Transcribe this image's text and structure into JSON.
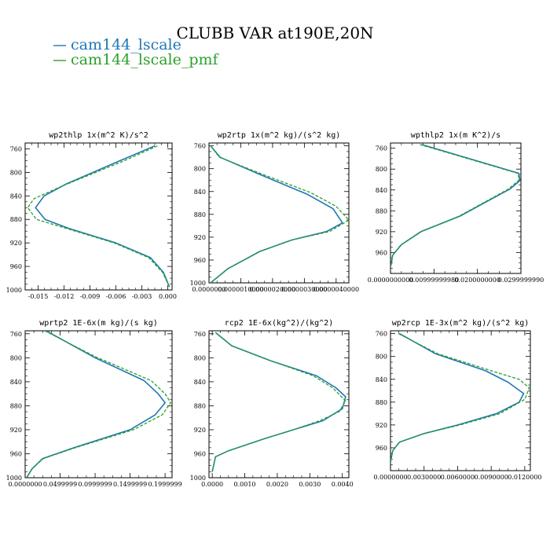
{
  "figure": {
    "title": "CLUBB VAR at190E,20N",
    "legend": [
      {
        "label": "cam144_lscale",
        "color": "#1f77b4",
        "dash": "solid"
      },
      {
        "label": "cam144_lscale_pmf",
        "color": "#2ca02c",
        "dash": "dashed"
      }
    ]
  },
  "chart_data": [
    {
      "type": "line",
      "title": "wp2thlp  1x(m^2 K)/s^2",
      "xlim": [
        -0.0165,
        0.0005
      ],
      "ylim": [
        1000,
        750
      ],
      "xticks": [
        -0.015,
        -0.012,
        -0.009,
        -0.006,
        -0.003,
        0.0
      ],
      "xtick_labels": [
        "-0.015",
        "-0.012",
        "-0.009",
        "-0.006",
        "-0.003",
        "0.000"
      ],
      "yticks": [
        760,
        800,
        840,
        880,
        920,
        960,
        1000
      ],
      "series": [
        {
          "name": "cam144_lscale",
          "color": "#1f77b4",
          "dash": "solid",
          "points": [
            [
              -0.0015,
              755
            ],
            [
              -0.0055,
              780
            ],
            [
              -0.0118,
              820
            ],
            [
              -0.0143,
              840
            ],
            [
              -0.0153,
              860
            ],
            [
              -0.0142,
              880
            ],
            [
              -0.0115,
              895
            ],
            [
              -0.006,
              920
            ],
            [
              -0.002,
              945
            ],
            [
              -0.0005,
              970
            ],
            [
              0.0002,
              995
            ]
          ]
        },
        {
          "name": "cam144_lscale_pmf",
          "color": "#2ca02c",
          "dash": "dashed",
          "points": [
            [
              -0.0012,
              755
            ],
            [
              -0.005,
              780
            ],
            [
              -0.0125,
              825
            ],
            [
              -0.0155,
              845
            ],
            [
              -0.0162,
              860
            ],
            [
              -0.0152,
              880
            ],
            [
              -0.0118,
              895
            ],
            [
              -0.0062,
              920
            ],
            [
              -0.0022,
              945
            ],
            [
              -0.0006,
              970
            ],
            [
              0.0002,
              995
            ]
          ]
        }
      ]
    },
    {
      "type": "line",
      "title": "wp2rtp  1x(m^2 kg)/(s^2 kg)",
      "xlim": [
        0,
        4.4e-06
      ],
      "ylim": [
        1000,
        755
      ],
      "xticks": [
        0,
        1e-06,
        2e-06,
        3e-06,
        4e-06
      ],
      "xtick_labels": [
        "0.0000000",
        "0.0000010000",
        "0.0000020000",
        "0.0000030000",
        "0.0000040000"
      ],
      "yticks": [
        760,
        800,
        840,
        880,
        920,
        960,
        1000
      ],
      "series": [
        {
          "name": "cam144_lscale",
          "color": "#1f77b4",
          "dash": "solid",
          "points": [
            [
              5e-08,
              760
            ],
            [
              3.5e-07,
              780
            ],
            [
              1.6e-06,
              810
            ],
            [
              3.1e-06,
              845
            ],
            [
              3.9e-06,
              870
            ],
            [
              4.2e-06,
              895
            ],
            [
              3.7e-06,
              910
            ],
            [
              2.6e-06,
              925
            ],
            [
              1.6e-06,
              945
            ],
            [
              6e-07,
              975
            ],
            [
              5e-08,
              1000
            ]
          ]
        },
        {
          "name": "cam144_lscale_pmf",
          "color": "#2ca02c",
          "dash": "dashed",
          "points": [
            [
              5e-08,
              760
            ],
            [
              3.3e-07,
              780
            ],
            [
              1.6e-06,
              808
            ],
            [
              3.2e-06,
              842
            ],
            [
              4e-06,
              866
            ],
            [
              4.4e-06,
              890
            ],
            [
              3.8e-06,
              910
            ],
            [
              2.6e-06,
              925
            ],
            [
              1.6e-06,
              945
            ],
            [
              6e-07,
              975
            ],
            [
              5e-08,
              1000
            ]
          ]
        }
      ]
    },
    {
      "type": "line",
      "title": "wpthlp2  1x(m K^2)/s",
      "xlim": [
        0,
        0.03
      ],
      "ylim": [
        1000,
        750
      ],
      "xticks": [
        0,
        0.01,
        0.02,
        0.03
      ],
      "xtick_labels": [
        "0.0000000000",
        "0.00999999980",
        "0.0200000000",
        "0.0299999990"
      ],
      "yticks": [
        760,
        800,
        840,
        880,
        920,
        960
      ],
      "series": [
        {
          "name": "cam144_lscale",
          "color": "#1f77b4",
          "dash": "solid",
          "points": [
            [
              0.0072,
              753
            ],
            [
              0.0295,
              808
            ],
            [
              0.0298,
              822
            ],
            [
              0.0275,
              838
            ],
            [
              0.016,
              890
            ],
            [
              0.007,
              920
            ],
            [
              0.0025,
              945
            ],
            [
              0.0005,
              965
            ],
            [
              0.0001,
              985
            ]
          ]
        },
        {
          "name": "cam144_lscale_pmf",
          "color": "#2ca02c",
          "dash": "dashed",
          "points": [
            [
              0.0068,
              753
            ],
            [
              0.0292,
              808
            ],
            [
              0.0297,
              820
            ],
            [
              0.0272,
              838
            ],
            [
              0.0158,
              890
            ],
            [
              0.0069,
              920
            ],
            [
              0.0024,
              945
            ],
            [
              0.0005,
              965
            ],
            [
              0.0001,
              985
            ]
          ]
        }
      ]
    },
    {
      "type": "line",
      "title": "wprtp2  1E-6x(m kg)/(s kg)",
      "xlim": [
        0,
        0.21
      ],
      "ylim": [
        1000,
        755
      ],
      "xticks": [
        0,
        0.05,
        0.1,
        0.15,
        0.2
      ],
      "xtick_labels": [
        "0.0000000",
        "0.0499999",
        "0.0999999",
        "0.1499999",
        "0.1999999"
      ],
      "yticks": [
        760,
        800,
        840,
        880,
        920,
        960,
        1000
      ],
      "series": [
        {
          "name": "cam144_lscale",
          "color": "#1f77b4",
          "dash": "solid",
          "points": [
            [
              0.03,
              755
            ],
            [
              0.1,
              800
            ],
            [
              0.17,
              838
            ],
            [
              0.19,
              860
            ],
            [
              0.2,
              875
            ],
            [
              0.186,
              895
            ],
            [
              0.15,
              920
            ],
            [
              0.07,
              950
            ],
            [
              0.025,
              968
            ],
            [
              0.01,
              985
            ],
            [
              0.002,
              1000
            ]
          ]
        },
        {
          "name": "cam144_lscale_pmf",
          "color": "#2ca02c",
          "dash": "dashed",
          "points": [
            [
              0.028,
              755
            ],
            [
              0.1,
              798
            ],
            [
              0.18,
              838
            ],
            [
              0.2,
              860
            ],
            [
              0.208,
              875
            ],
            [
              0.196,
              895
            ],
            [
              0.155,
              920
            ],
            [
              0.072,
              950
            ],
            [
              0.026,
              968
            ],
            [
              0.01,
              985
            ],
            [
              0.002,
              1000
            ]
          ]
        }
      ]
    },
    {
      "type": "line",
      "title": "rcp2  1E-6x(kg^2)/(kg^2)",
      "xlim": [
        -0.0001,
        0.0042
      ],
      "ylim": [
        1000,
        755
      ],
      "xticks": [
        0,
        0.001,
        0.002,
        0.003,
        0.004
      ],
      "xtick_labels": [
        "0.0000",
        "0.0010",
        "0.0020",
        "0.0030",
        "0.0040"
      ],
      "yticks": [
        760,
        800,
        840,
        880,
        920,
        960,
        1000
      ],
      "series": [
        {
          "name": "cam144_lscale",
          "color": "#1f77b4",
          "dash": "solid",
          "points": [
            [
              0.0001,
              758
            ],
            [
              0.0006,
              780
            ],
            [
              0.0018,
              805
            ],
            [
              0.0032,
              830
            ],
            [
              0.0038,
              850
            ],
            [
              0.0041,
              865
            ],
            [
              0.004,
              885
            ],
            [
              0.0034,
              905
            ],
            [
              0.0025,
              920
            ],
            [
              0.0016,
              935
            ],
            [
              0.0005,
              955
            ],
            [
              0.0001,
              965
            ],
            [
              0.0,
              990
            ]
          ]
        },
        {
          "name": "cam144_lscale_pmf",
          "color": "#2ca02c",
          "dash": "dashed",
          "points": [
            [
              0.0001,
              758
            ],
            [
              0.0006,
              780
            ],
            [
              0.0018,
              805
            ],
            [
              0.0031,
              830
            ],
            [
              0.0037,
              850
            ],
            [
              0.0041,
              872
            ],
            [
              0.0039,
              890
            ],
            [
              0.0033,
              905
            ],
            [
              0.0025,
              920
            ],
            [
              0.0016,
              935
            ],
            [
              0.0005,
              955
            ],
            [
              0.0001,
              965
            ],
            [
              0.0,
              990
            ]
          ]
        }
      ]
    },
    {
      "type": "line",
      "title": "wp2rcp  1E-3x(m^2 kg)/(s^2 kg)",
      "xlim": [
        0,
        0.0125
      ],
      "ylim": [
        1000,
        755
      ],
      "xticks": [
        0,
        0.003,
        0.006,
        0.009,
        0.012
      ],
      "xtick_labels": [
        "0.0000000",
        "0.0030000",
        "0.0060000",
        "0.0090000",
        "0.0120000"
      ],
      "yticks": [
        760,
        800,
        840,
        880,
        920,
        960
      ],
      "series": [
        {
          "name": "cam144_lscale",
          "color": "#1f77b4",
          "dash": "solid",
          "points": [
            [
              0.0008,
              760
            ],
            [
              0.004,
              795
            ],
            [
              0.0085,
              825
            ],
            [
              0.0105,
              845
            ],
            [
              0.0119,
              865
            ],
            [
              0.0115,
              880
            ],
            [
              0.0095,
              900
            ],
            [
              0.006,
              920
            ],
            [
              0.003,
              935
            ],
            [
              0.0008,
              950
            ],
            [
              0.0002,
              965
            ],
            [
              0.0,
              985
            ]
          ]
        },
        {
          "name": "cam144_lscale_pmf",
          "color": "#2ca02c",
          "dash": "dashed",
          "points": [
            [
              0.0007,
              760
            ],
            [
              0.0042,
              795
            ],
            [
              0.009,
              825
            ],
            [
              0.0115,
              840
            ],
            [
              0.0124,
              855
            ],
            [
              0.012,
              875
            ],
            [
              0.0098,
              900
            ],
            [
              0.0062,
              920
            ],
            [
              0.003,
              935
            ],
            [
              0.0008,
              950
            ],
            [
              0.0002,
              965
            ],
            [
              0.0,
              985
            ]
          ]
        }
      ]
    }
  ]
}
